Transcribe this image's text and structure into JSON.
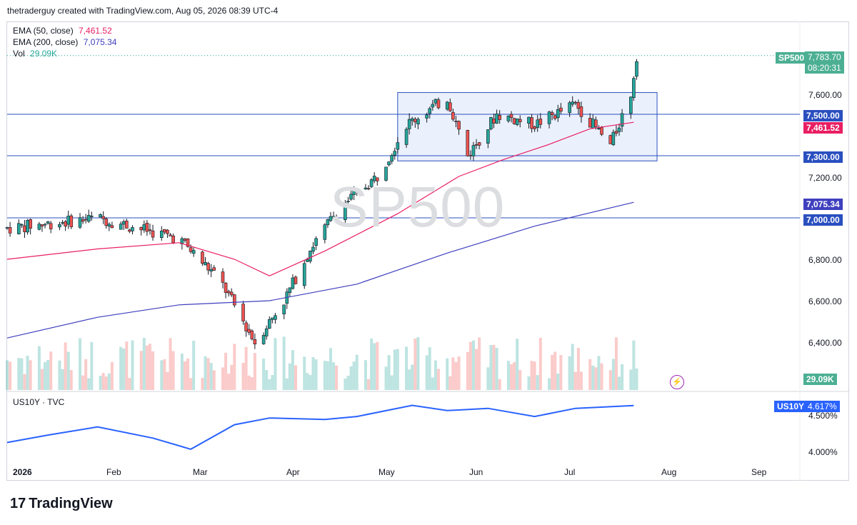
{
  "header": {
    "text": "thetraderguy created with TradingView.com, Aug 05, 2026 08:39 UTC-4"
  },
  "legend": {
    "ema50_label": "EMA (50, close)",
    "ema50_value": "7,461.52",
    "ema200_label": "EMA (200, close)",
    "ema200_value": "7,075.34",
    "vol_label": "Vol",
    "vol_value": "29.09K"
  },
  "watermark": "SP500",
  "price_tags": {
    "symbol": "SP500",
    "last": "7,783.70",
    "countdown": "08:20:31",
    "level_7500": "7,500.00",
    "ema50": "7,461.52",
    "level_7300": "7,300.00",
    "ema200": "7,075.34",
    "level_7000": "7,000.00",
    "volume": "29.09K",
    "us10y_symbol": "US10Y",
    "us10y_value": "4.617%"
  },
  "price_axis": [
    "7,600.00",
    "7,200.00",
    "6,800.00",
    "6,600.00",
    "6,400.00"
  ],
  "lower_pane": {
    "title": "US10Y · TVC",
    "axis": [
      "4.500%",
      "4.000%"
    ]
  },
  "time_axis": [
    "2026",
    "Feb",
    "Mar",
    "Apr",
    "May",
    "Jun",
    "Jul",
    "Aug",
    "Sep"
  ],
  "brand": "TradingView",
  "colors": {
    "up": "#26a69a",
    "down": "#ef5350",
    "ema50": "#e91e63",
    "ema200": "#3f3fbf",
    "hline": "#2a4fbf",
    "box_fill": "#e3ebfb",
    "box_stroke": "#2a4fbf",
    "us10y": "#2962ff",
    "symbol_tag": "#4caf93",
    "ema50_tag": "#e91e63",
    "ema200_tag": "#3f3fbf",
    "level_tag": "#2a4fbf"
  },
  "chart_data": {
    "type": "candlestick",
    "symbol": "SP500",
    "horizontal_levels": [
      7500,
      7300,
      7000
    ],
    "range_box": {
      "from": "2026-05-15",
      "to": "2026-08-12",
      "low": 7275,
      "high": 7605
    },
    "x_range": [
      "2026-01-01",
      "2026-09-30"
    ],
    "y_range": [
      6200,
      7850
    ],
    "last_price": 7783.7,
    "ema50_last": 7461.52,
    "ema200_last": 7075.34,
    "volume_last": "29.09K",
    "series": [
      {
        "name": "EMA (50, close)",
        "date": [
          "2026-01-01",
          "2026-02-01",
          "2026-03-01",
          "2026-03-20",
          "2026-04-01",
          "2026-04-20",
          "2026-05-15",
          "2026-06-05",
          "2026-06-20",
          "2026-07-05",
          "2026-07-20",
          "2026-08-04"
        ],
        "value": [
          6800,
          6850,
          6880,
          6800,
          6720,
          6840,
          7020,
          7200,
          7280,
          7350,
          7430,
          7461.52
        ]
      },
      {
        "name": "EMA (200, close)",
        "date": [
          "2026-01-01",
          "2026-02-01",
          "2026-03-01",
          "2026-04-01",
          "2026-05-01",
          "2026-06-01",
          "2026-07-01",
          "2026-08-04"
        ],
        "value": [
          6420,
          6520,
          6580,
          6600,
          6680,
          6830,
          6960,
          7075.34
        ]
      },
      {
        "name": "US10Y",
        "date": [
          "2026-01-01",
          "2026-01-15",
          "2026-02-01",
          "2026-02-20",
          "2026-03-05",
          "2026-03-20",
          "2026-04-01",
          "2026-04-20",
          "2026-05-01",
          "2026-05-20",
          "2026-06-01",
          "2026-06-15",
          "2026-07-01",
          "2026-07-15",
          "2026-08-04"
        ],
        "value": [
          4.12,
          4.22,
          4.33,
          4.18,
          4.03,
          4.36,
          4.45,
          4.43,
          4.47,
          4.62,
          4.55,
          4.58,
          4.47,
          4.58,
          4.617
        ]
      }
    ]
  }
}
